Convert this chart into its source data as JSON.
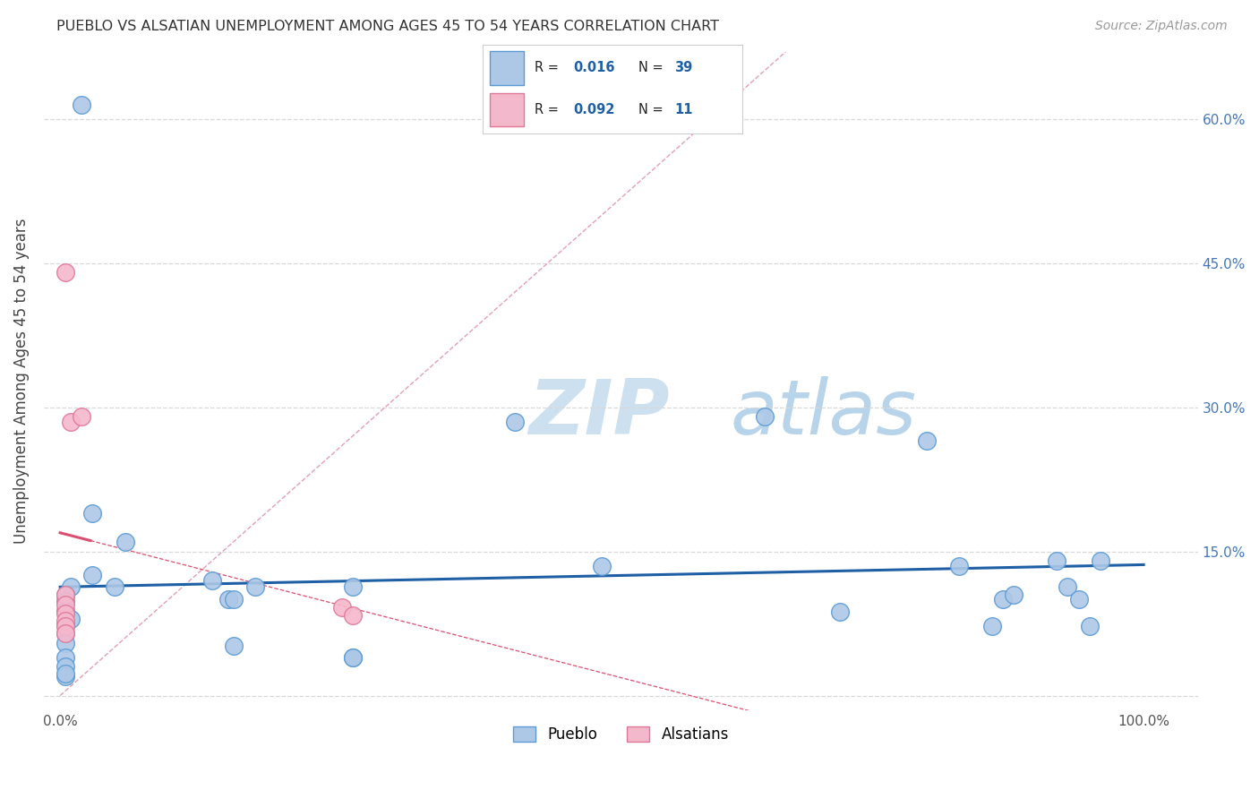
{
  "title": "PUEBLO VS ALSATIAN UNEMPLOYMENT AMONG AGES 45 TO 54 YEARS CORRELATION CHART",
  "source": "Source: ZipAtlas.com",
  "ylabel": "Unemployment Among Ages 45 to 54 years",
  "xlim": [
    -0.015,
    1.05
  ],
  "ylim": [
    -0.015,
    0.67
  ],
  "x_ticks": [
    0.0,
    0.2,
    0.4,
    0.6,
    0.8,
    1.0
  ],
  "x_tick_labels": [
    "0.0%",
    "",
    "",
    "",
    "",
    "100.0%"
  ],
  "y_ticks": [
    0.0,
    0.15,
    0.3,
    0.45,
    0.6
  ],
  "y_tick_labels_right": [
    "",
    "15.0%",
    "30.0%",
    "45.0%",
    "60.0%"
  ],
  "pueblo_R": "0.016",
  "pueblo_N": "39",
  "alsatian_R": "0.092",
  "alsatian_N": "11",
  "pueblo_color": "#adc8e6",
  "pueblo_edge_color": "#5b9bd5",
  "alsatian_color": "#f4b8cc",
  "alsatian_edge_color": "#e07898",
  "pueblo_line_color": "#1f5fa6",
  "alsatian_line_color": "#d94f70",
  "diagonal_color": "#e0a0b0",
  "watermark_color": "#cde0f0",
  "background_color": "#ffffff",
  "grid_color": "#d8d8d8",
  "pueblo_x": [
    0.02,
    0.03,
    0.01,
    0.005,
    0.005,
    0.005,
    0.01,
    0.005,
    0.005,
    0.005,
    0.005,
    0.005,
    0.03,
    0.05,
    0.06,
    0.14,
    0.155,
    0.16,
    0.16,
    0.18,
    0.27,
    0.42,
    0.5,
    0.65,
    0.72,
    0.8,
    0.83,
    0.86,
    0.87,
    0.88,
    0.92,
    0.93,
    0.94,
    0.95,
    0.96,
    0.27,
    0.27,
    0.005,
    0.005
  ],
  "pueblo_y": [
    0.615,
    0.125,
    0.113,
    0.105,
    0.098,
    0.088,
    0.08,
    0.073,
    0.065,
    0.055,
    0.04,
    0.03,
    0.19,
    0.113,
    0.16,
    0.12,
    0.1,
    0.1,
    0.052,
    0.113,
    0.113,
    0.285,
    0.135,
    0.29,
    0.087,
    0.265,
    0.135,
    0.072,
    0.1,
    0.105,
    0.14,
    0.113,
    0.1,
    0.072,
    0.14,
    0.04,
    0.04,
    0.02,
    0.023
  ],
  "alsatian_x": [
    0.005,
    0.005,
    0.005,
    0.005,
    0.005,
    0.005,
    0.005,
    0.01,
    0.02,
    0.26,
    0.27
  ],
  "alsatian_y": [
    0.44,
    0.105,
    0.095,
    0.085,
    0.078,
    0.072,
    0.065,
    0.285,
    0.29,
    0.092,
    0.083
  ],
  "alsatian_line_x0": 0.0,
  "alsatian_line_x1": 0.028,
  "pueblo_line_x0": 0.0,
  "pueblo_line_x1": 1.0
}
